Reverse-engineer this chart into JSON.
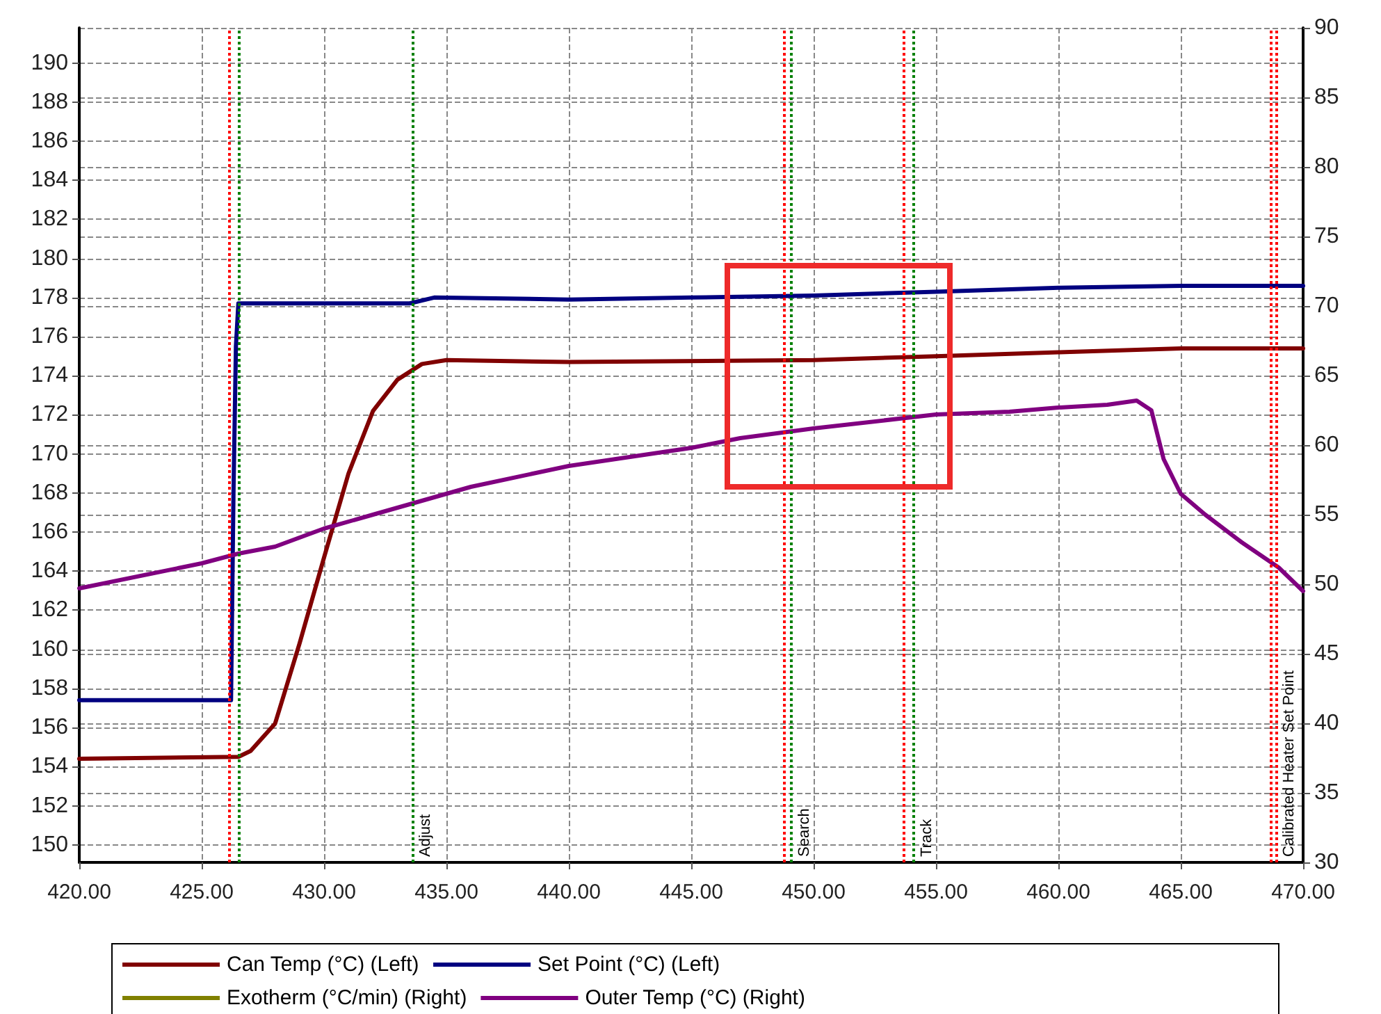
{
  "chart_data": {
    "type": "line",
    "marker": "none",
    "line_style": "solid",
    "grid": true,
    "legend": "bottom",
    "xlim": [
      420,
      470
    ],
    "xticks": [
      {
        "value": 420,
        "label": "420.00"
      },
      {
        "value": 425,
        "label": "425.00"
      },
      {
        "value": 430,
        "label": "430.00"
      },
      {
        "value": 435,
        "label": "435.00"
      },
      {
        "value": 440,
        "label": "440.00"
      },
      {
        "value": 445,
        "label": "445.00"
      },
      {
        "value": 450,
        "label": "450.00"
      },
      {
        "value": 455,
        "label": "455.00"
      },
      {
        "value": 460,
        "label": "460.00"
      },
      {
        "value": 465,
        "label": "465.00"
      },
      {
        "value": 470,
        "label": "470.00"
      }
    ],
    "ylim": [
      149.1,
      191.8
    ],
    "yticks": [
      150,
      152,
      154,
      156,
      158,
      160,
      162,
      164,
      166,
      168,
      170,
      172,
      174,
      176,
      178,
      180,
      182,
      184,
      186,
      188,
      190
    ],
    "y2lim": [
      30,
      90
    ],
    "y2ticks": [
      30,
      35,
      40,
      45,
      50,
      55,
      60,
      65,
      70,
      75,
      80,
      85,
      90
    ],
    "series": [
      {
        "name": "Can Temp (°C) (Left)",
        "color": "#800000",
        "x": [
          420,
          426.5,
          427,
          428,
          429,
          430,
          431,
          432,
          433,
          434,
          435,
          440,
          450,
          455,
          460,
          465,
          470
        ],
        "values": [
          154.4,
          154.5,
          154.8,
          156.2,
          160.3,
          164.7,
          169,
          172.2,
          173.8,
          174.6,
          174.8,
          174.7,
          174.8,
          175,
          175.2,
          175.4,
          175.4
        ]
      },
      {
        "name": "Set Point (°C) (Left)",
        "color": "#000080",
        "x": [
          420,
          426.2,
          426.3,
          426.4,
          426.5,
          433.5,
          434.5,
          440,
          445,
          450,
          455,
          460,
          465,
          470
        ],
        "values": [
          157.4,
          157.4,
          168,
          175.5,
          177.7,
          177.7,
          178,
          177.9,
          178,
          178.1,
          178.3,
          178.5,
          178.6,
          178.6
        ]
      },
      {
        "name": "Exotherm (°C/min) (Right)",
        "color": "#808000",
        "axis": "y2"
      },
      {
        "name": "Outer Temp (°C) (Right)",
        "color": "#800080",
        "axis": "y2",
        "x": [
          420,
          425,
          426.5,
          428,
          430,
          432,
          434,
          436,
          440,
          445,
          447,
          450,
          455,
          458,
          460,
          462,
          463.2,
          463.8,
          464.3,
          465,
          466,
          467.5,
          469,
          470
        ],
        "values": [
          49.7,
          51.5,
          52.2,
          52.7,
          54,
          55,
          56,
          57,
          58.5,
          59.8,
          60.5,
          61.2,
          62.2,
          62.4,
          62.7,
          62.9,
          63.2,
          62.5,
          59,
          56.5,
          55,
          53,
          51.2,
          49.5
        ]
      }
    ],
    "ref_lines": [
      {
        "axis": "x",
        "value": 426.1,
        "color": "#ff0000",
        "line_style": "dotted"
      },
      {
        "axis": "x",
        "value": 426.5,
        "color": "#008000",
        "line_style": "dotted"
      },
      {
        "axis": "x",
        "value": 433.6,
        "color": "#008000",
        "line_style": "dotted",
        "label": "Adjust"
      },
      {
        "axis": "x",
        "value": 448.8,
        "color": "#ff0000",
        "line_style": "dotted"
      },
      {
        "axis": "x",
        "value": 449.1,
        "color": "#008000",
        "line_style": "dotted",
        "label": "Search"
      },
      {
        "axis": "x",
        "value": 453.7,
        "color": "#ff0000",
        "line_style": "dotted"
      },
      {
        "axis": "x",
        "value": 454.1,
        "color": "#008000",
        "line_style": "dotted",
        "label": "Track"
      },
      {
        "axis": "x",
        "value": 468.7,
        "color": "#ff0000",
        "line_style": "dotted"
      },
      {
        "axis": "x",
        "value": 468.9,
        "color": "#ff0000",
        "line_style": "dotted",
        "label": "Calibrated Heater Set Point"
      }
    ]
  }
}
